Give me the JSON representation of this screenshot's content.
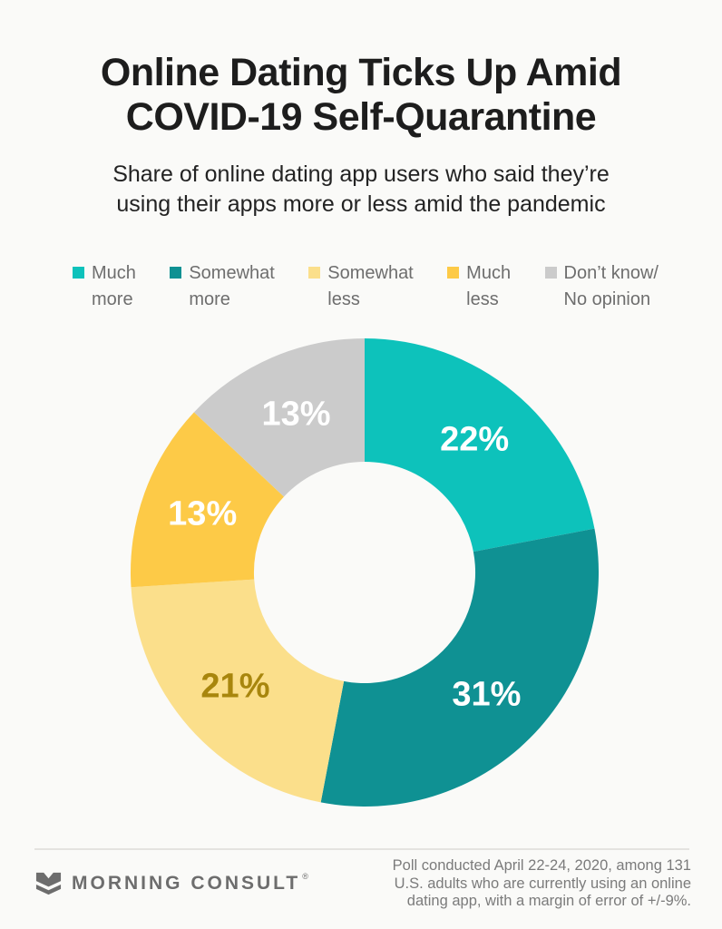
{
  "chart_data": {
    "type": "pie",
    "variant": "donut",
    "title": "Online Dating Ticks Up Amid\nCOVID-19 Self-Quarantine",
    "subtitle": "Share of online dating app users who said they’re\nusing their apps more or less amid the pandemic",
    "series": [
      {
        "label": "Much more",
        "legend_label": "Much\nmore",
        "value": 22,
        "color": "#0dc2bb",
        "label_color": "#ffffff"
      },
      {
        "label": "Somewhat more",
        "legend_label": "Somewhat\nmore",
        "value": 31,
        "color": "#0f9193",
        "label_color": "#ffffff"
      },
      {
        "label": "Somewhat less",
        "legend_label": "Somewhat\nless",
        "value": 21,
        "color": "#fbdf8b",
        "label_color": "#a8860d"
      },
      {
        "label": "Much less",
        "legend_label": "Much\nless",
        "value": 13,
        "color": "#fdca47",
        "label_color": "#ffffff"
      },
      {
        "label": "Don’t know/No opinion",
        "legend_label": "Don’t know/\nNo opinion",
        "value": 13,
        "color": "#cbcbcb",
        "label_color": "#ffffff"
      }
    ],
    "value_suffix": "%",
    "start_angle_deg": 0,
    "direction": "clockwise",
    "inner_radius_ratio": 0.473,
    "legend_position": "top",
    "background": "#fafaf8"
  },
  "footer": {
    "brand": "MORNING CONSULT",
    "registered_mark": "®",
    "source_note": "Poll conducted April 22-24, 2020, among 131\nU.S. adults who are currently using an online\ndating app, with a margin of error of +/-9%."
  }
}
